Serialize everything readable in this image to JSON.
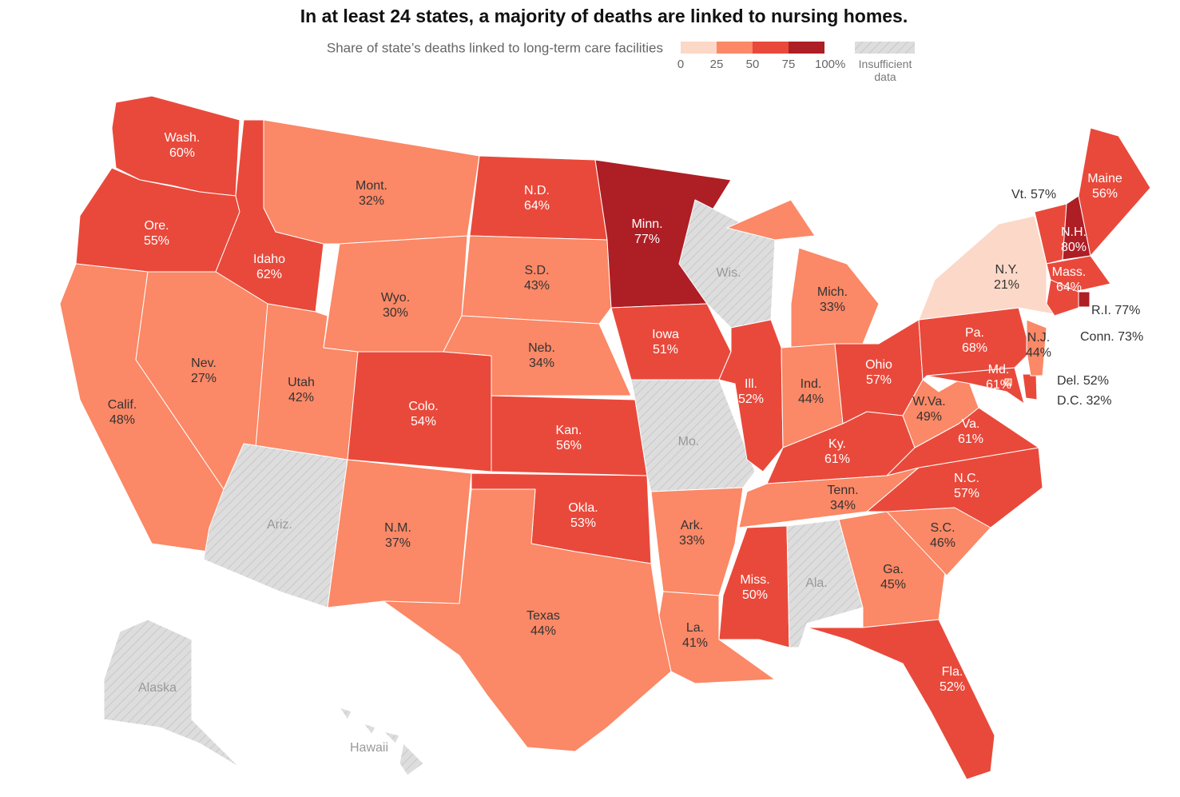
{
  "chart_data": {
    "type": "choropleth",
    "title": "In at least 24 states, a majority of deaths are linked to nursing homes.",
    "legend": {
      "title": "Share of state’s deaths linked to long-term care facilities",
      "ticks": [
        0,
        25,
        50,
        75,
        {
          "value": 100,
          "label": "100%"
        }
      ],
      "colors": [
        "#fcd8c8",
        "#fb8866",
        "#e9493b",
        "#ae1e25"
      ],
      "insufficient_label": "Insufficient data",
      "insufficient_color": "#dddddd"
    },
    "states": [
      {
        "name": "Wash.",
        "value": 60,
        "value_label": "60%"
      },
      {
        "name": "Ore.",
        "value": 55,
        "value_label": "55%"
      },
      {
        "name": "Calif.",
        "value": 48,
        "value_label": "48%"
      },
      {
        "name": "Idaho",
        "value": 62,
        "value_label": "62%"
      },
      {
        "name": "Nev.",
        "value": 27,
        "value_label": "27%"
      },
      {
        "name": "Utah",
        "value": 42,
        "value_label": "42%"
      },
      {
        "name": "Ariz."
      },
      {
        "name": "Mont.",
        "value": 32,
        "value_label": "32%"
      },
      {
        "name": "Wyo.",
        "value": 30,
        "value_label": "30%"
      },
      {
        "name": "Colo.",
        "value": 54,
        "value_label": "54%"
      },
      {
        "name": "N.M.",
        "value": 37,
        "value_label": "37%"
      },
      {
        "name": "N.D.",
        "value": 64,
        "value_label": "64%"
      },
      {
        "name": "S.D.",
        "value": 43,
        "value_label": "43%"
      },
      {
        "name": "Neb.",
        "value": 34,
        "value_label": "34%"
      },
      {
        "name": "Kan.",
        "value": 56,
        "value_label": "56%"
      },
      {
        "name": "Okla.",
        "value": 53,
        "value_label": "53%"
      },
      {
        "name": "Texas",
        "value": 44,
        "value_label": "44%"
      },
      {
        "name": "Minn.",
        "value": 77,
        "value_label": "77%"
      },
      {
        "name": "Iowa",
        "value": 51,
        "value_label": "51%"
      },
      {
        "name": "Mo."
      },
      {
        "name": "Ark.",
        "value": 33,
        "value_label": "33%"
      },
      {
        "name": "La.",
        "value": 41,
        "value_label": "41%"
      },
      {
        "name": "Wis."
      },
      {
        "name": "Ill.",
        "value": 52,
        "value_label": "52%"
      },
      {
        "name": "Mich.",
        "value": 33,
        "value_label": "33%"
      },
      {
        "name": "Ind.",
        "value": 44,
        "value_label": "44%"
      },
      {
        "name": "Ohio",
        "value": 57,
        "value_label": "57%"
      },
      {
        "name": "Ky.",
        "value": 61,
        "value_label": "61%"
      },
      {
        "name": "Tenn.",
        "value": 34,
        "value_label": "34%"
      },
      {
        "name": "Miss.",
        "value": 50,
        "value_label": "50%"
      },
      {
        "name": "Ala."
      },
      {
        "name": "Ga.",
        "value": 45,
        "value_label": "45%"
      },
      {
        "name": "Fla.",
        "value": 52,
        "value_label": "52%"
      },
      {
        "name": "S.C.",
        "value": 46,
        "value_label": "46%"
      },
      {
        "name": "N.C.",
        "value": 57,
        "value_label": "57%"
      },
      {
        "name": "Va.",
        "value": 61,
        "value_label": "61%"
      },
      {
        "name": "W.Va.",
        "value": 49,
        "value_label": "49%"
      },
      {
        "name": "Pa.",
        "value": 68,
        "value_label": "68%"
      },
      {
        "name": "Md.",
        "value": 61,
        "value_label": "61%"
      },
      {
        "name": "Del.",
        "value": 52,
        "value_label": "52%"
      },
      {
        "name": "D.C.",
        "value": 32,
        "value_label": "32%"
      },
      {
        "name": "N.J.",
        "value": 44,
        "value_label": "44%"
      },
      {
        "name": "N.Y.",
        "value": 21,
        "value_label": "21%"
      },
      {
        "name": "Vt.",
        "value": 57,
        "value_label": "57%"
      },
      {
        "name": "N.H.",
        "value": 80,
        "value_label": "80%"
      },
      {
        "name": "Maine",
        "value": 56,
        "value_label": "56%"
      },
      {
        "name": "Mass.",
        "value": 64,
        "value_label": "64%"
      },
      {
        "name": "R.I.",
        "value": 77,
        "value_label": "77%"
      },
      {
        "name": "Conn.",
        "value": 73,
        "value_label": "73%"
      },
      {
        "name": "Alaska"
      },
      {
        "name": "Hawaii"
      }
    ]
  }
}
